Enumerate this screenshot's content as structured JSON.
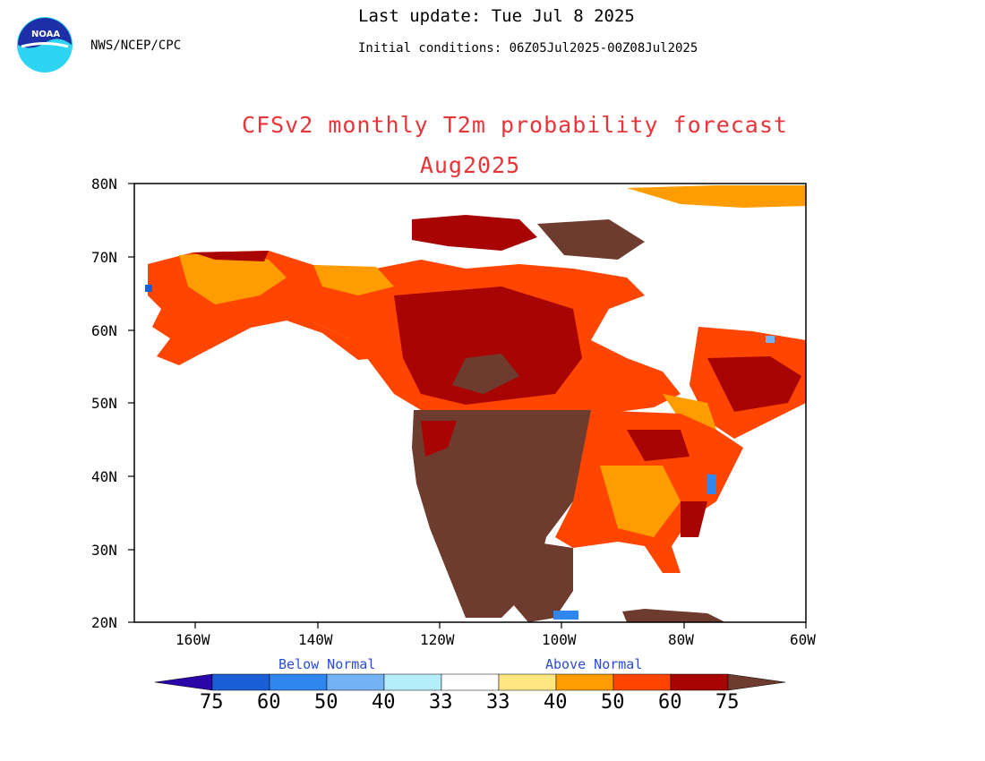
{
  "header": {
    "agency": "NWS/NCEP/CPC",
    "logo_text": "NOAA",
    "last_update": "Last update: Tue Jul  8 2025",
    "initial_conditions": "Initial conditions: 06Z05Jul2025-00Z08Jul2025"
  },
  "title": {
    "line1": "CFSv2 monthly T2m probability forecast",
    "line2": "Aug2025"
  },
  "map": {
    "lat_labels": [
      "80N",
      "70N",
      "60N",
      "50N",
      "40N",
      "30N",
      "20N"
    ],
    "lon_labels": [
      "160W",
      "140W",
      "120W",
      "100W",
      "80W",
      "60W"
    ],
    "lat_range": [
      20,
      80
    ],
    "lon_range": [
      -170,
      -60
    ]
  },
  "colorbar": {
    "below_label": "Below Normal",
    "above_label": "Above Normal",
    "labels": [
      "75",
      "60",
      "50",
      "40",
      "33",
      "33",
      "40",
      "50",
      "60",
      "75"
    ],
    "colors": [
      "#2a06a8",
      "#1b5fd6",
      "#2f86ee",
      "#72b2f5",
      "#b4eefb",
      "#ffffff",
      "#ffe680",
      "#ff9d00",
      "#ff4500",
      "#a80404",
      "#6e3c2e"
    ]
  }
}
